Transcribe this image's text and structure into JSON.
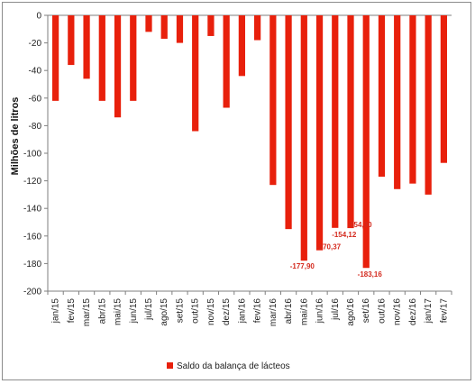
{
  "chart_data": {
    "type": "bar",
    "title": "",
    "xlabel": "",
    "ylabel": "Milhões de litros",
    "ylim": [
      -200,
      0
    ],
    "yticks": [
      0,
      -20,
      -40,
      -60,
      -80,
      -100,
      -120,
      -140,
      -160,
      -180,
      -200
    ],
    "ytick_labels": [
      "0",
      "-20",
      "-40",
      "-60",
      "-80",
      "-100",
      "-120",
      "-140",
      "-160",
      "-180",
      "-200"
    ],
    "grid": false,
    "legend": "bottom",
    "bar_color": "#e8200c",
    "label_color": "#d42a1e",
    "categories": [
      "jan/15",
      "fev/15",
      "mar/15",
      "abr/15",
      "mai/15",
      "jun/15",
      "jul/15",
      "ago/15",
      "set/15",
      "out/15",
      "nov/15",
      "dez/15",
      "jan/16",
      "fev/16",
      "mar/16",
      "abr/16",
      "mai/16",
      "jun/16",
      "jul/16",
      "ago/16",
      "set/16",
      "out/16",
      "nov/16",
      "dez/16",
      "jan/17",
      "fev/17"
    ],
    "series": [
      {
        "name": "Saldo da balança de lácteos",
        "values": [
          -62,
          -36,
          -46,
          -62,
          -74,
          -62,
          -12,
          -17,
          -20,
          -84,
          -15,
          -67,
          -44,
          -18,
          -123,
          -155,
          -177.9,
          -170.37,
          -154.12,
          -154.3,
          -183.16,
          -117,
          -126,
          -122,
          -130,
          -107
        ]
      }
    ],
    "data_labels": [
      {
        "index": 16,
        "text": "-177,90"
      },
      {
        "index": 17,
        "text": "-170,37"
      },
      {
        "index": 18,
        "text": "-154,12"
      },
      {
        "index": 19,
        "text": "-154,30"
      },
      {
        "index": 20,
        "text": "-183,16"
      }
    ]
  }
}
